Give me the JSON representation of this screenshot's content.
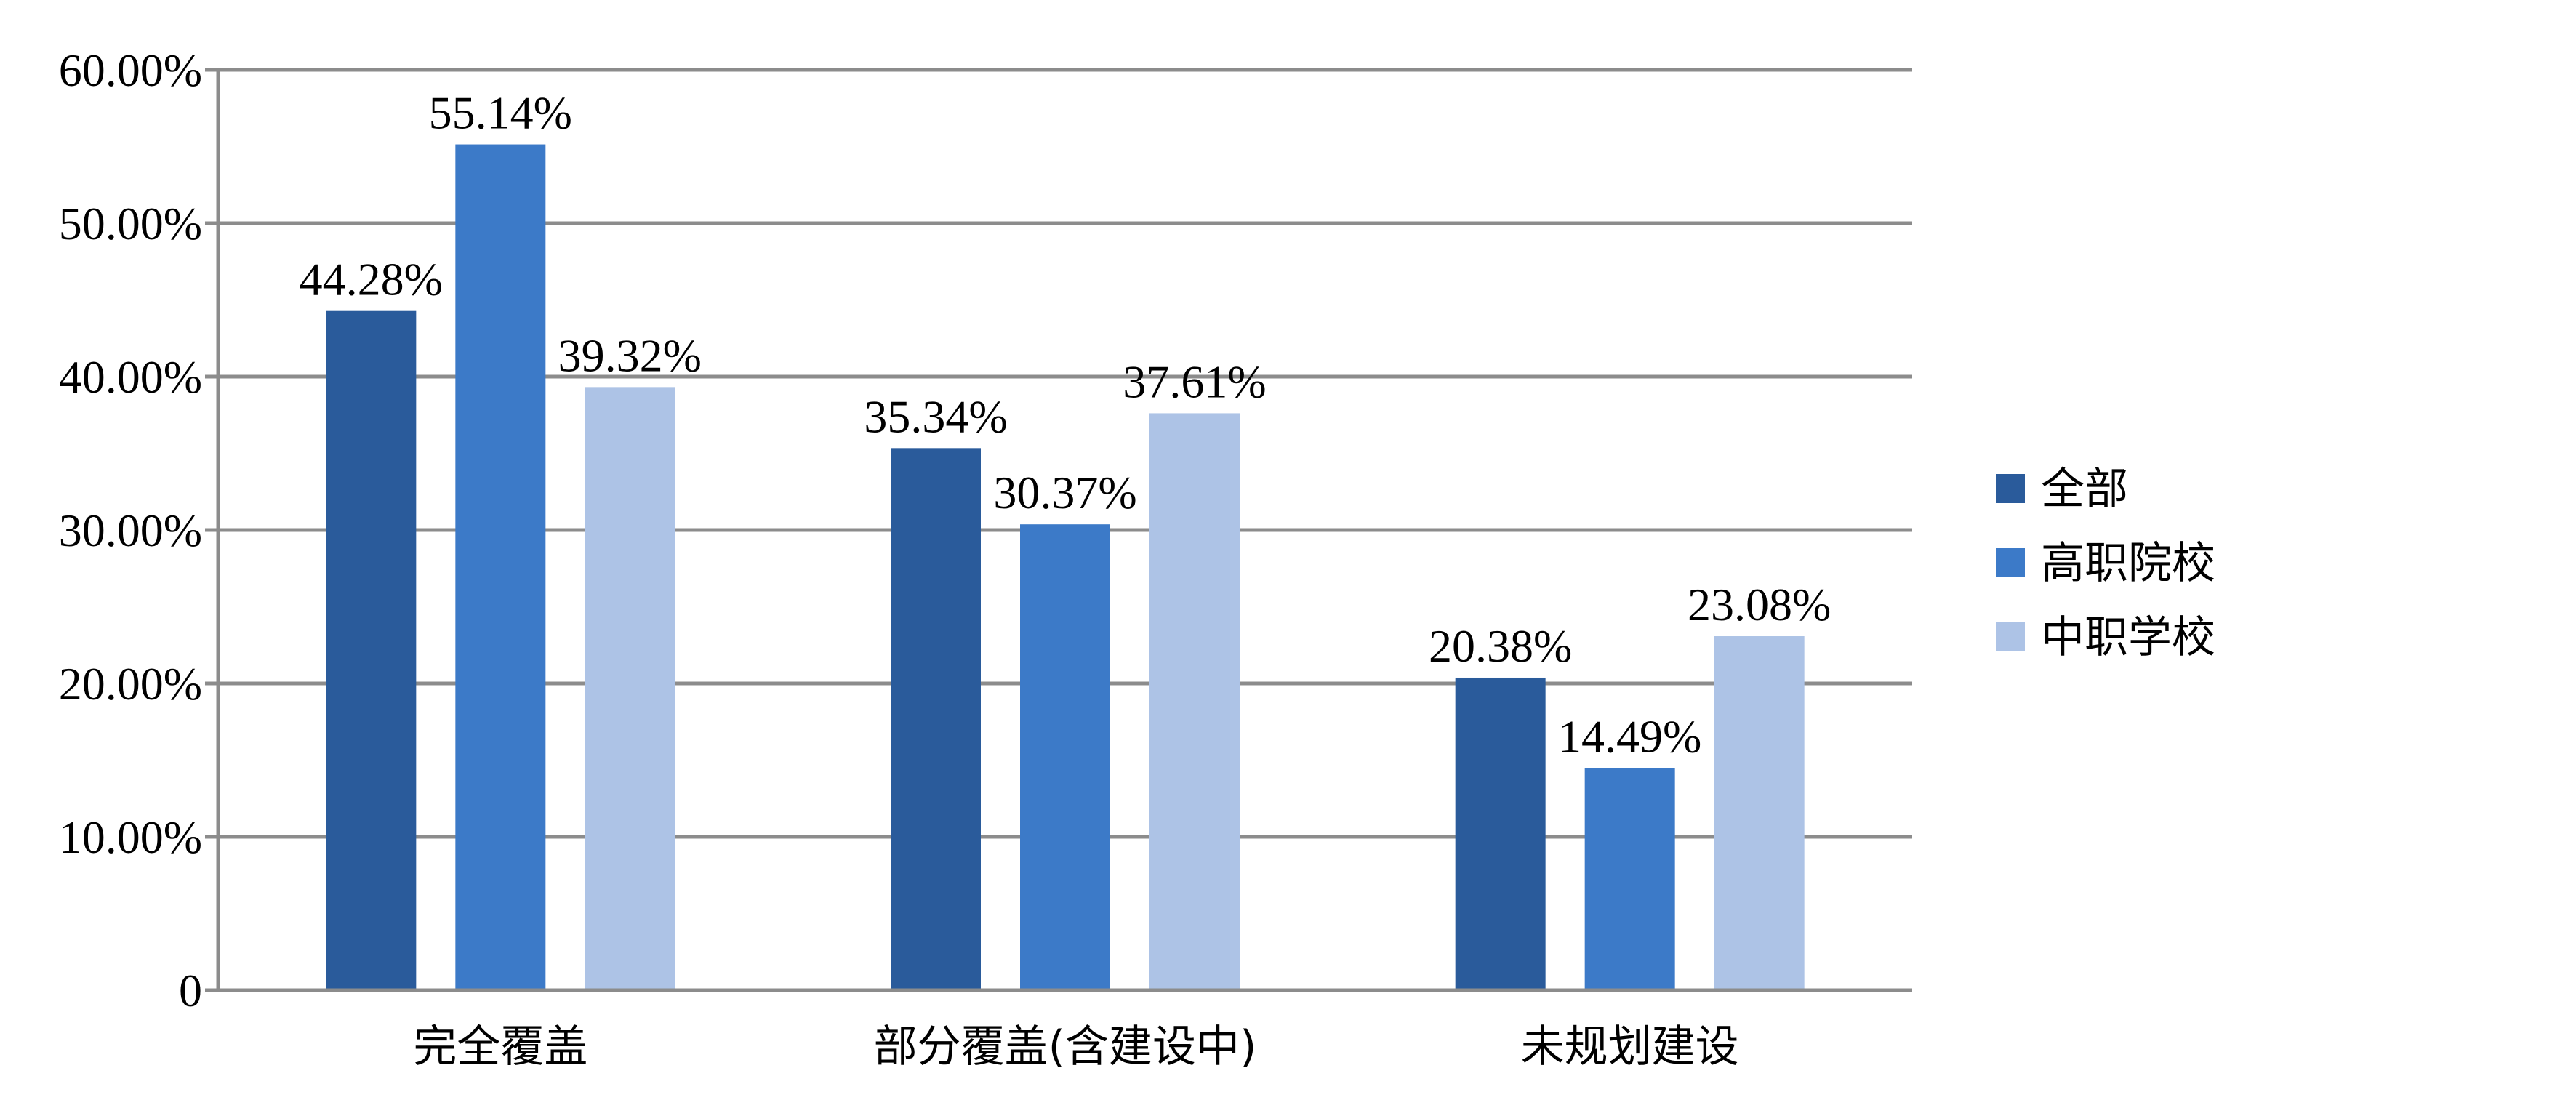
{
  "chart_data": {
    "type": "bar",
    "categories": [
      "完全覆盖",
      "部分覆盖(含建设中)",
      "未规划建设"
    ],
    "series": [
      {
        "name": "全部",
        "values": [
          44.28,
          35.34,
          20.38
        ],
        "labels": [
          "44.28%",
          "35.34%",
          "20.38%"
        ],
        "color": "#2a5b9b"
      },
      {
        "name": "高职院校",
        "values": [
          55.14,
          30.37,
          14.49
        ],
        "labels": [
          "55.14%",
          "30.37%",
          "14.49%"
        ],
        "color": "#3c7ac8"
      },
      {
        "name": "中职学校",
        "values": [
          39.32,
          37.61,
          23.08
        ],
        "labels": [
          "39.32%",
          "37.61%",
          "23.08%"
        ],
        "color": "#adc3e6"
      }
    ],
    "yticks": [
      0,
      10,
      20,
      30,
      40,
      50,
      60
    ],
    "ytick_labels": [
      "0",
      "10.00%",
      "20.00%",
      "30.00%",
      "40.00%",
      "50.00%",
      "60.00%"
    ],
    "ylim": [
      0,
      60
    ],
    "grid": true,
    "legend_position": "right",
    "title": "",
    "xlabel": "",
    "ylabel": ""
  }
}
